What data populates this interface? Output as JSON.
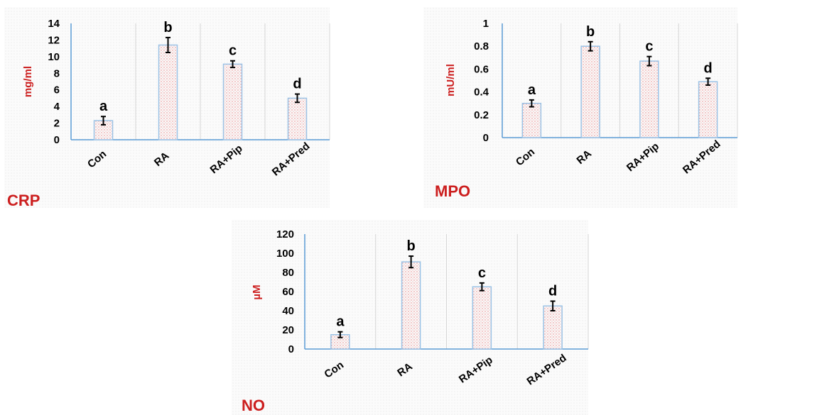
{
  "chart_data": [
    {
      "type": "bar",
      "title": "CRP",
      "ylabel": "mg/ml",
      "categories": [
        "Con",
        "RA",
        "RA+Pip",
        "RA+Pred"
      ],
      "values": [
        2.3,
        11.4,
        9.1,
        5.0
      ],
      "errors": [
        0.5,
        0.9,
        0.4,
        0.5
      ],
      "letters": [
        "a",
        "b",
        "c",
        "d"
      ],
      "ylim": [
        0,
        14
      ],
      "yticks": [
        "0",
        "2",
        "4",
        "6",
        "8",
        "10",
        "12",
        "14"
      ],
      "grid": "vertical",
      "bar_color": "#9cc3e6"
    },
    {
      "type": "bar",
      "title": "MPO",
      "ylabel": "mU/ml",
      "categories": [
        "Con",
        "RA",
        "RA+Pip",
        "RA+Pred"
      ],
      "values": [
        0.3,
        0.8,
        0.67,
        0.49
      ],
      "errors": [
        0.03,
        0.04,
        0.04,
        0.03
      ],
      "letters": [
        "a",
        "b",
        "c",
        "d"
      ],
      "ylim": [
        0,
        1
      ],
      "yticks": [
        "0",
        "0.2",
        "0.4",
        "0.6",
        "0.8",
        "1"
      ],
      "grid": "vertical",
      "bar_color": "#9cc3e6"
    },
    {
      "type": "bar",
      "title": "NO",
      "ylabel": "µM",
      "categories": [
        "Con",
        "RA",
        "RA+Pip",
        "RA+Pred"
      ],
      "values": [
        15,
        91,
        65,
        45
      ],
      "errors": [
        3,
        6,
        4,
        5
      ],
      "letters": [
        "a",
        "b",
        "c",
        "d"
      ],
      "ylim": [
        0,
        120
      ],
      "yticks": [
        "0",
        "20",
        "40",
        "60",
        "80",
        "100",
        "120"
      ],
      "grid": "vertical",
      "bar_color": "#9cc3e6"
    }
  ]
}
